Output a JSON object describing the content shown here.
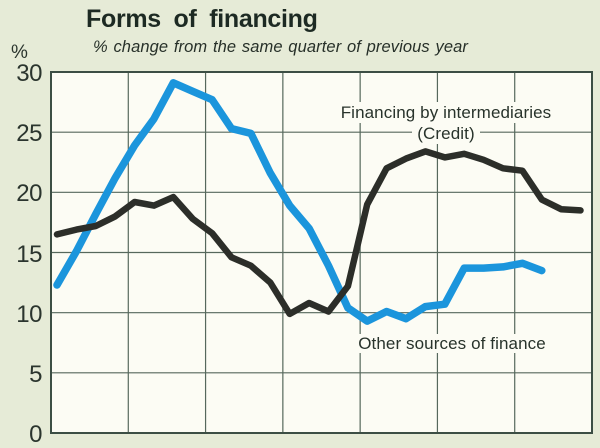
{
  "header": {
    "unit_label": "%",
    "title": "Forms of financing",
    "subtitle": "% change from the same quarter of previous year"
  },
  "colors": {
    "page_bg": "#e6ebd7",
    "plot_bg": "#fcfcf4",
    "frame": "#3c4e44",
    "gridline": "#56685c",
    "credit_line": "#2c2e29",
    "other_line": "#1b95dc",
    "text": "#28332b"
  },
  "chart_data": {
    "type": "line",
    "title": "Forms of financing",
    "subtitle": "% change from the same quarter of previous year",
    "y_unit": "%",
    "ylim": [
      0,
      30
    ],
    "yticks": [
      30,
      25,
      20,
      15,
      10,
      5,
      0
    ],
    "x_tick_labels_visible": false,
    "x_note": "quarterly observations, 7 year-wide grid intervals, no x labels shown",
    "grid": true,
    "legend_position": "in-plot annotations",
    "series": [
      {
        "name": "Financing by intermediaries (Credit)",
        "label_lines": [
          "Financing by intermediaries",
          "(Credit)"
        ],
        "color": "#2c2e29",
        "values": [
          16.5,
          16.9,
          17.2,
          18.0,
          19.2,
          18.9,
          19.6,
          17.8,
          16.6,
          14.6,
          13.9,
          12.5,
          9.9,
          10.8,
          10.1,
          12.2,
          19.0,
          22.0,
          22.8,
          23.4,
          22.9,
          23.2,
          22.7,
          22.0,
          21.8,
          19.4,
          18.6,
          18.5
        ]
      },
      {
        "name": "Other sources of finance",
        "label_lines": [
          "Other sources of finance"
        ],
        "color": "#1b95dc",
        "values": [
          12.3,
          15.1,
          18.2,
          21.2,
          23.9,
          26.1,
          29.1,
          28.4,
          27.7,
          25.3,
          24.9,
          21.6,
          18.9,
          17.0,
          13.9,
          10.4,
          9.3,
          10.1,
          9.5,
          10.5,
          10.7,
          13.7,
          13.7,
          13.8,
          14.1,
          13.5
        ]
      }
    ]
  }
}
